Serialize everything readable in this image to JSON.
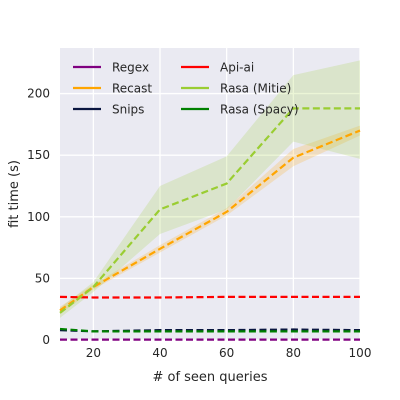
{
  "chart_data": {
    "type": "line",
    "title": "",
    "xlabel": "# of seen queries",
    "ylabel": "fit time (s)",
    "xlim": [
      10,
      100
    ],
    "ylim": [
      0,
      237
    ],
    "xticks": [
      20,
      40,
      60,
      80,
      100
    ],
    "yticks": [
      0,
      50,
      100,
      150,
      200
    ],
    "grid": true,
    "legend": "top-left",
    "legend_columns": 2,
    "series": [
      {
        "name": "Regex",
        "color": "#800080",
        "dash": true,
        "x": [
          10,
          20,
          40,
          60,
          80,
          100
        ],
        "values": [
          0.3,
          0.3,
          0.3,
          0.3,
          0.3,
          0.3
        ]
      },
      {
        "name": "Recast",
        "color": "#ffa500",
        "dash": true,
        "x": [
          10,
          20,
          40,
          60,
          80,
          100
        ],
        "values": [
          24,
          43,
          74,
          104,
          148,
          170
        ],
        "band_low": [
          21,
          41,
          71,
          101,
          141,
          166
        ],
        "band_high": [
          27,
          45,
          77,
          107,
          155,
          174
        ]
      },
      {
        "name": "Snips",
        "color": "#0a1640",
        "dash": true,
        "x": [
          10,
          20,
          40,
          60,
          80,
          100
        ],
        "values": [
          8,
          7,
          8,
          8,
          8.5,
          8
        ]
      },
      {
        "name": "Api-ai",
        "color": "#ff0000",
        "dash": true,
        "x": [
          10,
          20,
          40,
          60,
          80,
          100
        ],
        "values": [
          35,
          34.5,
          34.5,
          35,
          35,
          35
        ]
      },
      {
        "name": "Rasa (Mitie)",
        "color": "#9acd32",
        "dash": true,
        "x": [
          10,
          20,
          40,
          60,
          80,
          100
        ],
        "values": [
          22,
          43,
          106,
          127,
          188,
          188
        ],
        "band_low": [
          18,
          39,
          86,
          106,
          161,
          147
        ],
        "band_high": [
          26,
          47,
          125,
          149,
          215,
          227
        ]
      },
      {
        "name": "Rasa (Spacy)",
        "color": "#008000",
        "dash": true,
        "x": [
          10,
          20,
          40,
          60,
          80,
          100
        ],
        "values": [
          9,
          7,
          7,
          7,
          7,
          7
        ]
      }
    ]
  }
}
